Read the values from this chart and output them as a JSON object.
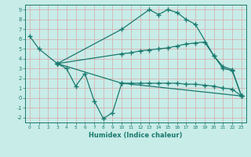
{
  "line1_x": [
    0,
    1,
    3,
    10,
    13,
    14,
    15,
    16,
    17,
    18,
    20,
    21,
    22,
    23
  ],
  "line1_y": [
    6.3,
    5.0,
    3.5,
    7.0,
    9.0,
    8.5,
    9.0,
    8.7,
    8.0,
    7.5,
    4.3,
    3.0,
    2.8,
    0.2
  ],
  "line2_x": [
    3,
    10,
    11,
    12,
    13,
    14,
    15,
    16,
    17,
    18,
    19,
    20,
    21,
    22,
    23
  ],
  "line2_y": [
    3.5,
    4.5,
    4.6,
    4.8,
    4.9,
    5.0,
    5.1,
    5.3,
    5.5,
    5.6,
    5.7,
    4.3,
    3.2,
    2.9,
    0.2
  ],
  "line3_x": [
    3,
    10,
    11,
    12,
    13,
    14,
    15,
    16,
    17,
    18,
    19,
    20,
    21,
    22,
    23
  ],
  "line3_y": [
    3.5,
    1.5,
    1.5,
    1.5,
    1.5,
    1.5,
    1.5,
    1.5,
    1.4,
    1.4,
    1.3,
    1.2,
    1.0,
    0.9,
    0.2
  ],
  "line4_x": [
    3,
    4,
    5,
    6,
    7,
    8,
    9,
    10,
    23
  ],
  "line4_y": [
    3.5,
    3.0,
    1.2,
    2.5,
    -0.3,
    -2.1,
    -1.5,
    1.5,
    0.2
  ],
  "color": "#1a7a6e",
  "bg_color": "#c8ece8",
  "grid_color": "#b8dcd8",
  "xlim": [
    -0.5,
    23.5
  ],
  "ylim": [
    -2.5,
    9.5
  ],
  "xlabel": "Humidex (Indice chaleur)",
  "xticks": [
    0,
    1,
    2,
    3,
    4,
    5,
    6,
    7,
    8,
    9,
    10,
    11,
    12,
    13,
    14,
    15,
    16,
    17,
    18,
    19,
    20,
    21,
    22,
    23
  ],
  "yticks": [
    -2,
    -1,
    0,
    1,
    2,
    3,
    4,
    5,
    6,
    7,
    8,
    9
  ],
  "marker": "+",
  "marker_size": 4,
  "linewidth": 0.9
}
